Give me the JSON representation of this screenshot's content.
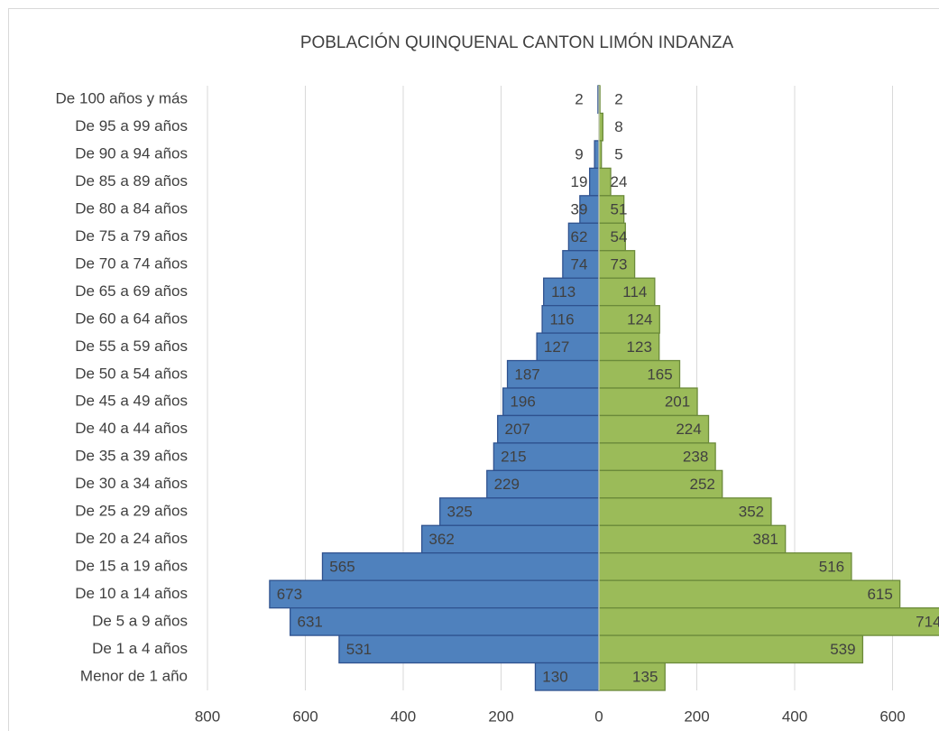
{
  "chart_data": {
    "type": "pyramid",
    "title": "POBLACIÓN QUINQUENAL CANTON LIMÓN INDANZA",
    "categories": [
      "De 100 años y más",
      "De 95 a 99 años",
      "De 90 a 94 años",
      "De 85 a 89 años",
      "De 80 a 84 años",
      "De 75 a 79 años",
      "De 70 a 74 años",
      "De 65 a 69 años",
      "De 60 a 64 años",
      "De 55 a 59 años",
      "De 50 a 54 años",
      "De 45 a 49 años",
      "De 40 a 44 años",
      "De 35 a 39 años",
      "De 30 a 34 años",
      "De 25 a 29 años",
      "De 20 a 24 años",
      "De 15 a 19 años",
      "De 10 a 14 años",
      "De 5 a 9 años",
      "De 1 a 4 años",
      "Menor de 1 año"
    ],
    "series": [
      {
        "side": "left",
        "color": "#4f81bd",
        "values": [
          2,
          null,
          9,
          19,
          39,
          62,
          74,
          113,
          116,
          127,
          187,
          196,
          207,
          215,
          229,
          325,
          362,
          565,
          673,
          631,
          531,
          130
        ]
      },
      {
        "side": "right",
        "color": "#9bbb59",
        "values": [
          2,
          8,
          5,
          24,
          51,
          54,
          73,
          114,
          124,
          123,
          165,
          201,
          224,
          238,
          252,
          352,
          381,
          516,
          615,
          714,
          539,
          135
        ]
      }
    ],
    "xlim": [
      -800,
      800
    ],
    "xticks": [
      {
        "value": -800,
        "label": "800"
      },
      {
        "value": -600,
        "label": "600"
      },
      {
        "value": -400,
        "label": "400"
      },
      {
        "value": -200,
        "label": "200"
      },
      0,
      200,
      400,
      600
    ],
    "grid": true
  }
}
